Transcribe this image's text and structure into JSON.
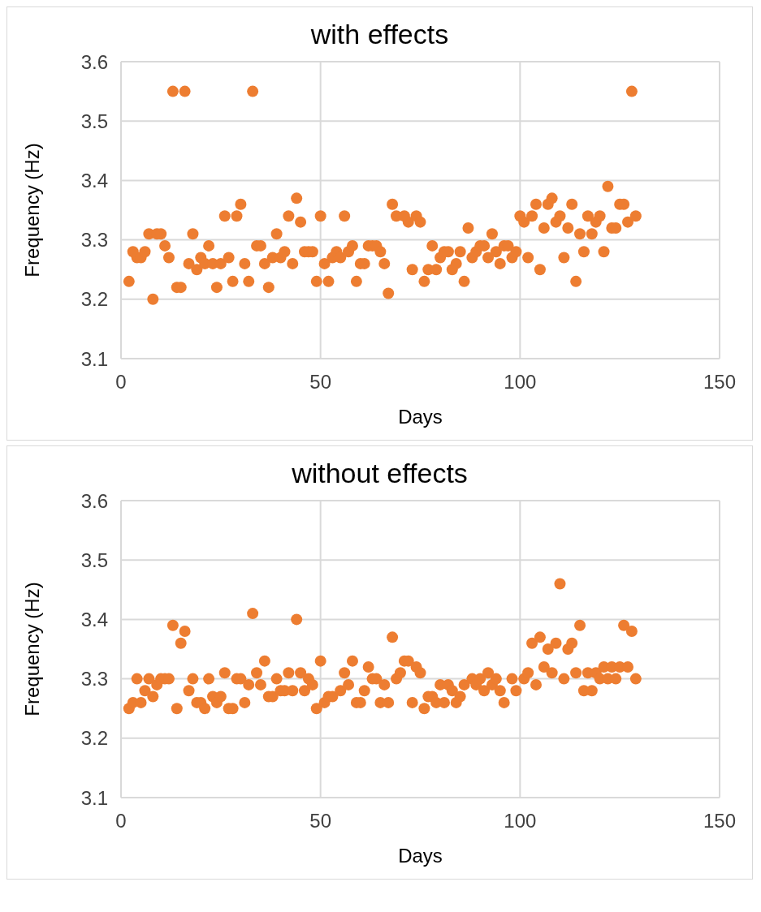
{
  "chart_data": [
    {
      "type": "scatter",
      "title": "with effects",
      "xlabel": "Days",
      "ylabel": "Frequency (Hz)",
      "xlim": [
        0,
        150
      ],
      "xticks": [
        0,
        50,
        100,
        150
      ],
      "ylim": [
        3.1,
        3.6
      ],
      "yticks": [
        3.1,
        3.2,
        3.3,
        3.4,
        3.5,
        3.6
      ],
      "grid": true,
      "legend": false,
      "marker": "circle",
      "series": [
        {
          "color": "#ed7d31",
          "x": [
            2,
            3,
            4,
            5,
            6,
            7,
            8,
            9,
            10,
            11,
            12,
            13,
            14,
            15,
            16,
            17,
            18,
            19,
            20,
            21,
            22,
            23,
            24,
            25,
            26,
            27,
            28,
            29,
            30,
            31,
            32,
            33,
            34,
            35,
            36,
            37,
            38,
            39,
            40,
            41,
            42,
            43,
            44,
            45,
            46,
            47,
            48,
            49,
            50,
            51,
            52,
            53,
            54,
            55,
            56,
            57,
            58,
            59,
            60,
            61,
            62,
            63,
            64,
            65,
            66,
            67,
            68,
            69,
            71,
            72,
            73,
            74,
            75,
            76,
            77,
            78,
            79,
            80,
            81,
            82,
            83,
            84,
            85,
            86,
            87,
            88,
            89,
            90,
            91,
            92,
            93,
            94,
            95,
            96,
            97,
            98,
            99,
            100,
            101,
            102,
            103,
            104,
            105,
            106,
            107,
            108,
            109,
            110,
            111,
            112,
            113,
            114,
            115,
            116,
            117,
            118,
            119,
            120,
            121,
            122,
            123,
            124,
            125,
            126,
            127,
            128,
            129
          ],
          "values": [
            3.23,
            3.28,
            3.27,
            3.27,
            3.28,
            3.31,
            3.2,
            3.31,
            3.31,
            3.29,
            3.27,
            3.55,
            3.22,
            3.22,
            3.55,
            3.26,
            3.31,
            3.25,
            3.27,
            3.26,
            3.29,
            3.26,
            3.22,
            3.26,
            3.34,
            3.27,
            3.23,
            3.34,
            3.36,
            3.26,
            3.23,
            3.55,
            3.29,
            3.29,
            3.26,
            3.22,
            3.27,
            3.31,
            3.27,
            3.28,
            3.34,
            3.26,
            3.37,
            3.33,
            3.28,
            3.28,
            3.28,
            3.23,
            3.34,
            3.26,
            3.23,
            3.27,
            3.28,
            3.27,
            3.34,
            3.28,
            3.29,
            3.23,
            3.26,
            3.26,
            3.29,
            3.29,
            3.29,
            3.28,
            3.26,
            3.21,
            3.36,
            3.34,
            3.34,
            3.33,
            3.25,
            3.34,
            3.33,
            3.23,
            3.25,
            3.29,
            3.25,
            3.27,
            3.28,
            3.28,
            3.25,
            3.26,
            3.28,
            3.23,
            3.32,
            3.27,
            3.28,
            3.29,
            3.29,
            3.27,
            3.31,
            3.28,
            3.26,
            3.29,
            3.29,
            3.27,
            3.28,
            3.34,
            3.33,
            3.27,
            3.34,
            3.36,
            3.25,
            3.32,
            3.36,
            3.37,
            3.33,
            3.34,
            3.27,
            3.32,
            3.36,
            3.23,
            3.31,
            3.28,
            3.34,
            3.31,
            3.33,
            3.34,
            3.28,
            3.39,
            3.32,
            3.32,
            3.36,
            3.36,
            3.33,
            3.55,
            3.34
          ]
        }
      ]
    },
    {
      "type": "scatter",
      "title": "without effects",
      "xlabel": "Days",
      "ylabel": "Frequency (Hz)",
      "xlim": [
        0,
        150
      ],
      "xticks": [
        0,
        50,
        100,
        150
      ],
      "ylim": [
        3.1,
        3.6
      ],
      "yticks": [
        3.1,
        3.2,
        3.3,
        3.4,
        3.5,
        3.6
      ],
      "grid": true,
      "legend": false,
      "marker": "circle",
      "series": [
        {
          "color": "#ed7d31",
          "x": [
            2,
            3,
            4,
            5,
            6,
            7,
            8,
            9,
            10,
            11,
            12,
            13,
            14,
            15,
            16,
            17,
            18,
            19,
            20,
            21,
            22,
            23,
            24,
            25,
            26,
            27,
            28,
            29,
            30,
            31,
            32,
            33,
            34,
            35,
            36,
            37,
            38,
            39,
            40,
            41,
            42,
            43,
            44,
            45,
            46,
            47,
            48,
            49,
            50,
            51,
            52,
            53,
            55,
            56,
            57,
            58,
            59,
            60,
            61,
            62,
            63,
            64,
            65,
            66,
            67,
            68,
            69,
            70,
            71,
            72,
            73,
            74,
            75,
            76,
            77,
            78,
            79,
            80,
            81,
            82,
            83,
            84,
            85,
            86,
            88,
            89,
            90,
            91,
            92,
            93,
            94,
            95,
            96,
            98,
            99,
            101,
            102,
            103,
            104,
            105,
            106,
            107,
            108,
            109,
            110,
            111,
            112,
            113,
            114,
            115,
            116,
            117,
            118,
            119,
            120,
            121,
            122,
            123,
            124,
            125,
            126,
            127,
            128,
            129
          ],
          "values": [
            3.25,
            3.26,
            3.3,
            3.26,
            3.28,
            3.3,
            3.27,
            3.29,
            3.3,
            3.3,
            3.3,
            3.39,
            3.25,
            3.36,
            3.38,
            3.28,
            3.3,
            3.26,
            3.26,
            3.25,
            3.3,
            3.27,
            3.26,
            3.27,
            3.31,
            3.25,
            3.25,
            3.3,
            3.3,
            3.26,
            3.29,
            3.41,
            3.31,
            3.29,
            3.33,
            3.27,
            3.27,
            3.3,
            3.28,
            3.28,
            3.31,
            3.28,
            3.4,
            3.31,
            3.28,
            3.3,
            3.29,
            3.25,
            3.33,
            3.26,
            3.27,
            3.27,
            3.28,
            3.31,
            3.29,
            3.33,
            3.26,
            3.26,
            3.28,
            3.32,
            3.3,
            3.3,
            3.26,
            3.29,
            3.26,
            3.37,
            3.3,
            3.31,
            3.33,
            3.33,
            3.26,
            3.32,
            3.31,
            3.25,
            3.27,
            3.27,
            3.26,
            3.29,
            3.26,
            3.29,
            3.28,
            3.26,
            3.27,
            3.29,
            3.3,
            3.29,
            3.3,
            3.28,
            3.31,
            3.29,
            3.3,
            3.28,
            3.26,
            3.3,
            3.28,
            3.3,
            3.31,
            3.36,
            3.29,
            3.37,
            3.32,
            3.35,
            3.31,
            3.36,
            3.46,
            3.3,
            3.35,
            3.36,
            3.31,
            3.39,
            3.28,
            3.31,
            3.28,
            3.31,
            3.3,
            3.32,
            3.3,
            3.32,
            3.3,
            3.32,
            3.39,
            3.32,
            3.38,
            3.3
          ]
        }
      ]
    }
  ]
}
